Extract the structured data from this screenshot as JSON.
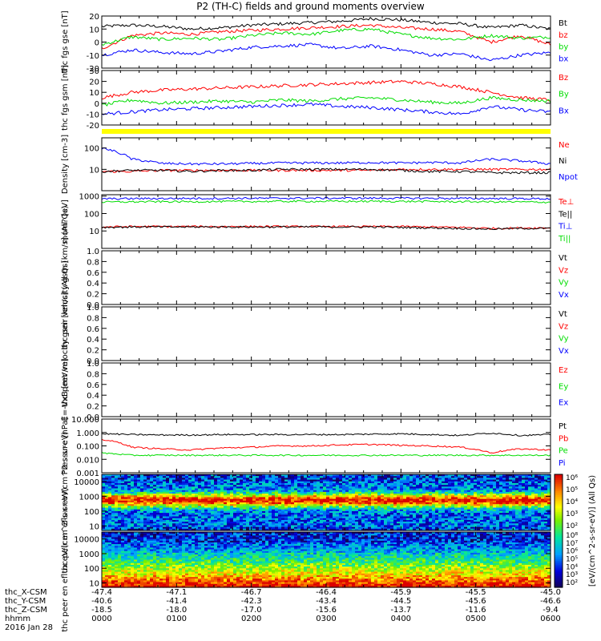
{
  "title": "P2 (TH-C) fields and ground moments overview",
  "date_label": "2016 Jan 28",
  "colorbar_label": "[eV/(cm^2-s-sr-eV)] (All Qs)",
  "colors": {
    "black": "#000000",
    "red": "#ff0000",
    "green": "#00dd00",
    "blue": "#0000ff",
    "yellow": "#ffff00"
  },
  "chart_data": [
    {
      "type": "line",
      "panel": "fgs-gse",
      "ylabel": "thc fgs gse [nT]",
      "ylim": [
        -20,
        20
      ],
      "ytick_labels": [
        "-20",
        "-10",
        "0",
        "10",
        "20"
      ],
      "series": [
        {
          "name": "Bt",
          "color": "black",
          "values": [
            12,
            13,
            12,
            10,
            11,
            13,
            14,
            15,
            16,
            18,
            17,
            15,
            14,
            11,
            13,
            10
          ]
        },
        {
          "name": "bz",
          "color": "red",
          "values": [
            -5,
            5,
            7,
            6,
            8,
            9,
            10,
            11,
            12,
            13,
            11,
            10,
            8,
            0,
            5,
            -2
          ]
        },
        {
          "name": "by",
          "color": "green",
          "values": [
            -2,
            4,
            2,
            3,
            2,
            5,
            7,
            6,
            9,
            10,
            6,
            3,
            2,
            5,
            3,
            4
          ]
        },
        {
          "name": "bx",
          "color": "blue",
          "values": [
            -10,
            -6,
            -8,
            -9,
            -7,
            -4,
            -3,
            -2,
            -5,
            -3,
            -6,
            -10,
            -9,
            -14,
            -10,
            -8
          ]
        }
      ]
    },
    {
      "type": "line",
      "panel": "fgs-gsm",
      "ylabel": "thc fgs gsm [nT]",
      "ylim": [
        -20,
        30
      ],
      "ytick_labels": [
        "-20",
        "-10",
        "0",
        "10",
        "20",
        "30"
      ],
      "series": [
        {
          "name": "Bz",
          "color": "red",
          "values": [
            5,
            10,
            12,
            13,
            14,
            15,
            16,
            17,
            18,
            19,
            20,
            18,
            15,
            10,
            5,
            3
          ]
        },
        {
          "name": "By",
          "color": "green",
          "values": [
            -2,
            3,
            0,
            1,
            2,
            1,
            3,
            2,
            4,
            5,
            3,
            1,
            0,
            5,
            3,
            2
          ]
        },
        {
          "name": "Bx",
          "color": "blue",
          "values": [
            -10,
            -8,
            -6,
            -5,
            -4,
            -3,
            -2,
            -1,
            -3,
            -4,
            -6,
            -8,
            -10,
            -3,
            -6,
            -8
          ]
        }
      ]
    },
    {
      "type": "line",
      "panel": "density",
      "ylabel": "Density [cm-3]",
      "yscale": "log",
      "ylim": [
        1,
        300
      ],
      "ytick_labels": [
        "10",
        "100"
      ],
      "series": [
        {
          "name": "Ne",
          "color": "red",
          "values": [
            8,
            8,
            9,
            9,
            9,
            9,
            9,
            9,
            9,
            9,
            10,
            10,
            10,
            10,
            10,
            10
          ]
        },
        {
          "name": "Ni",
          "color": "black",
          "values": [
            8,
            9,
            9,
            8,
            9,
            9,
            10,
            10,
            10,
            10,
            9,
            8,
            8,
            7,
            7,
            7
          ]
        },
        {
          "name": "Npot",
          "color": "blue",
          "values": [
            100,
            30,
            19,
            18,
            18,
            19,
            20,
            20,
            20,
            21,
            20,
            21,
            20,
            30,
            25,
            18
          ]
        }
      ]
    },
    {
      "type": "line",
      "panel": "temperature",
      "ylabel": "mom? [eV]",
      "yscale": "log",
      "ylim": [
        1,
        1200
      ],
      "ytick_labels": [
        "10",
        "100",
        "1000"
      ],
      "series": [
        {
          "name": "Te⊥",
          "color": "red",
          "values": [
            17,
            18,
            18,
            18,
            18,
            18,
            18,
            18,
            18,
            18,
            18,
            17,
            16,
            14,
            15,
            15
          ]
        },
        {
          "name": "Te||",
          "color": "black",
          "values": [
            16,
            17,
            17,
            17,
            17,
            17,
            17,
            17,
            17,
            17,
            16,
            15,
            14,
            13,
            14,
            14
          ]
        },
        {
          "name": "Ti⊥",
          "color": "blue",
          "values": [
            700,
            720,
            730,
            740,
            740,
            750,
            750,
            760,
            760,
            760,
            760,
            750,
            740,
            730,
            720,
            700
          ]
        },
        {
          "name": "Ti||",
          "color": "green",
          "values": [
            450,
            470,
            480,
            480,
            490,
            490,
            500,
            500,
            500,
            500,
            500,
            490,
            480,
            470,
            460,
            450
          ]
        }
      ]
    },
    {
      "type": "line",
      "panel": "peir-velocity",
      "ylabel": "thc peir velocity gsm [km/s] (All Qs)",
      "ylim": [
        0,
        1
      ],
      "ytick_labels": [
        "0.0",
        "0.2",
        "0.4",
        "0.6",
        "0.8",
        "1.0"
      ],
      "series": [
        {
          "name": "Vt",
          "color": "black",
          "values": []
        },
        {
          "name": "Vz",
          "color": "red",
          "values": []
        },
        {
          "name": "Vy",
          "color": "green",
          "values": []
        },
        {
          "name": "Vx",
          "color": "blue",
          "values": []
        }
      ]
    },
    {
      "type": "line",
      "panel": "peer-velocity",
      "ylabel": "thc peer velocity gsm [km/s] (All Qs)",
      "ylim": [
        0,
        1
      ],
      "ytick_labels": [
        "0.0",
        "0.2",
        "0.4",
        "0.6",
        "0.8",
        "1.0"
      ],
      "series": [
        {
          "name": "Vt",
          "color": "black",
          "values": []
        },
        {
          "name": "Vz",
          "color": "red",
          "values": []
        },
        {
          "name": "Vy",
          "color": "green",
          "values": []
        },
        {
          "name": "Vx",
          "color": "blue",
          "values": []
        }
      ]
    },
    {
      "type": "line",
      "panel": "efield",
      "ylabel": "E=-VxB [mV/m]",
      "ylim": [
        0,
        1
      ],
      "ytick_labels": [
        "0.0",
        "0.2",
        "0.4",
        "0.6",
        "0.8",
        "1.0"
      ],
      "series": [
        {
          "name": "Ez",
          "color": "red",
          "values": []
        },
        {
          "name": "Ey",
          "color": "green",
          "values": []
        },
        {
          "name": "Ex",
          "color": "blue",
          "values": []
        }
      ]
    },
    {
      "type": "line",
      "panel": "pressure",
      "ylabel": "Pressure [nPa]",
      "yscale": "log",
      "ylim": [
        0.001,
        10
      ],
      "ytick_labels": [
        "0.001",
        "0.010",
        "0.100",
        "1.000",
        "10.000"
      ],
      "series": [
        {
          "name": "Pt",
          "color": "black",
          "values": [
            0.8,
            0.7,
            0.65,
            0.65,
            0.7,
            0.7,
            0.7,
            0.7,
            0.7,
            0.75,
            0.8,
            0.7,
            0.6,
            0.9,
            0.6,
            0.7
          ]
        },
        {
          "name": "Pb",
          "color": "red",
          "values": [
            0.3,
            0.08,
            0.06,
            0.05,
            0.07,
            0.08,
            0.1,
            0.1,
            0.12,
            0.13,
            0.11,
            0.1,
            0.08,
            0.03,
            0.06,
            0.05
          ]
        },
        {
          "name": "Pe",
          "color": "green",
          "values": [
            0.03,
            0.02,
            0.02,
            0.02,
            0.02,
            0.02,
            0.02,
            0.02,
            0.02,
            0.02,
            0.02,
            0.02,
            0.02,
            0.02,
            0.02,
            0.02
          ]
        },
        {
          "name": "Pi",
          "color": "blue",
          "values": []
        }
      ]
    },
    {
      "type": "heatmap",
      "panel": "peir-eflux",
      "ylabel": "thc peir en eflux eV/(cm^2-s-sr-eV)",
      "yscale": "log",
      "ylim": [
        5,
        30000
      ],
      "ytick_labels": [
        "10",
        "100",
        "1000",
        "10000"
      ],
      "colorbar_range": [
        1,
        1000000
      ],
      "colorbar_tick_labels": [
        "10²",
        "10³",
        "10⁴",
        "10⁵",
        "10⁶"
      ]
    },
    {
      "type": "heatmap",
      "panel": "peer-eflux",
      "ylabel": "thc peer en eflux eV/(cm^2-s-sr-eV)",
      "yscale": "log",
      "ylim": [
        5,
        30000
      ],
      "ytick_labels": [
        "10",
        "100",
        "1000",
        "10000"
      ],
      "colorbar_range": [
        1,
        100000000
      ],
      "colorbar_tick_labels": [
        "10²",
        "10³",
        "10⁴",
        "10⁵",
        "10⁶",
        "10⁷",
        "10⁸"
      ]
    }
  ],
  "x_axis": {
    "row_labels": [
      "thc_X-CSM",
      "thc_Y-CSM",
      "thc_Z-CSM",
      "hhmm"
    ],
    "ticks": [
      {
        "X": "-47.4",
        "Y": "-40.6",
        "Z": "-18.5",
        "hhmm": "0000"
      },
      {
        "X": "-47.1",
        "Y": "-41.4",
        "Z": "-18.0",
        "hhmm": "0100"
      },
      {
        "X": "-46.7",
        "Y": "-42.3",
        "Z": "-17.0",
        "hhmm": "0200"
      },
      {
        "X": "-46.4",
        "Y": "-43.4",
        "Z": "-15.6",
        "hhmm": "0300"
      },
      {
        "X": "-45.9",
        "Y": "-44.5",
        "Z": "-13.7",
        "hhmm": "0400"
      },
      {
        "X": "-45.5",
        "Y": "-45.6",
        "Z": "-11.6",
        "hhmm": "0500"
      },
      {
        "X": "-45.0",
        "Y": "-46.6",
        "Z": "-9.4",
        "hhmm": "0600"
      }
    ]
  }
}
